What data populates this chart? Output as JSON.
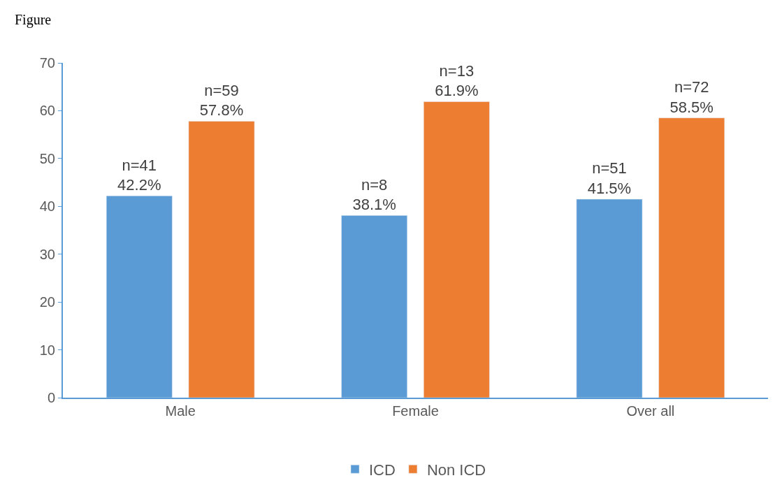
{
  "chart_data": {
    "type": "bar",
    "title": "Figure",
    "categories": [
      "Male",
      "Female",
      "Over all"
    ],
    "series": [
      {
        "name": "ICD",
        "color": "#5b9bd5",
        "values": [
          42.2,
          38.1,
          41.5
        ],
        "value_labels": [
          "n=41\n42.2%",
          "n=8\n38.1%",
          "n=51\n41.5%"
        ]
      },
      {
        "name": "Non ICD",
        "color": "#ed7d31",
        "values": [
          57.8,
          61.9,
          58.5
        ],
        "value_labels": [
          "n=59\n57.8%",
          "n=13\n61.9%",
          "n=72\n58.5%"
        ]
      }
    ],
    "ylim": [
      0,
      70
    ],
    "yticks": [
      0,
      10,
      20,
      30,
      40,
      50,
      60,
      70
    ],
    "legend": "bottom"
  }
}
